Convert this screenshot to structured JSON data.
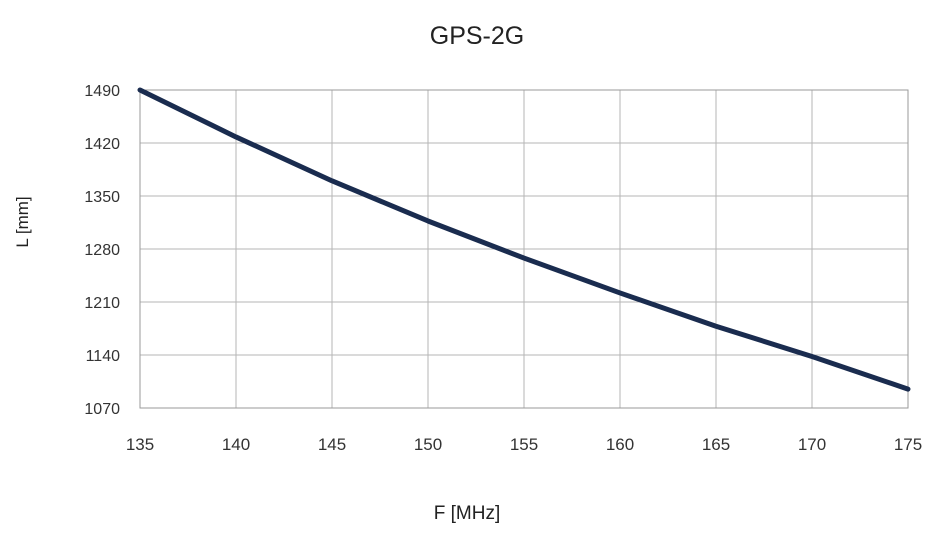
{
  "chart_data": {
    "type": "line",
    "title": "GPS-2G",
    "xlabel": "F [MHz]",
    "ylabel": "L [mm]",
    "xlim": [
      135,
      175
    ],
    "ylim": [
      1070,
      1490
    ],
    "x_ticks": [
      135,
      140,
      145,
      150,
      155,
      160,
      165,
      170,
      175
    ],
    "y_ticks": [
      1070,
      1140,
      1210,
      1280,
      1350,
      1420,
      1490
    ],
    "grid": true,
    "legend": "none",
    "series": [
      {
        "color": "#1a2c4f",
        "x": [
          135,
          140,
          145,
          150,
          155,
          160,
          165,
          170,
          175
        ],
        "y": [
          1490,
          1428,
          1370,
          1317,
          1268,
          1222,
          1178,
          1138,
          1095
        ]
      }
    ]
  }
}
